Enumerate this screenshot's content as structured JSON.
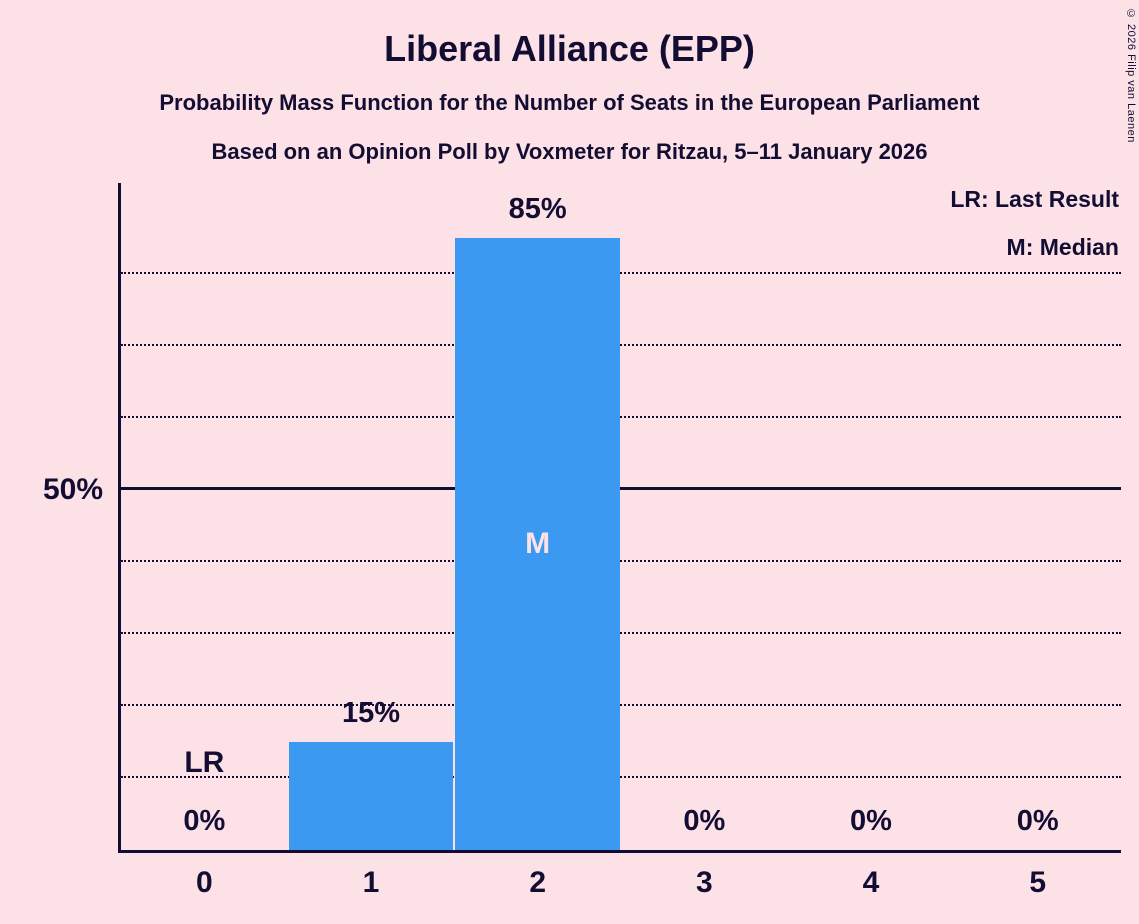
{
  "title": "Liberal Alliance (EPP)",
  "subtitle1": "Probability Mass Function for the Number of Seats in the European Parliament",
  "subtitle2": "Based on an Opinion Poll by Voxmeter for Ritzau, 5–11 January 2026",
  "copyright": "© 2026 Filip van Laenen",
  "legend": {
    "lr": "LR: Last Result",
    "m": "M: Median"
  },
  "y_axis_label": "50%",
  "annotations": {
    "lr_label": "LR",
    "median_label": "M"
  },
  "colors": {
    "background": "#FCE2E7",
    "bar": "#3B99F2",
    "text": "#140D33",
    "median_text": "#FCE2E7"
  },
  "chart_data": {
    "type": "bar",
    "categories": [
      "0",
      "1",
      "2",
      "3",
      "4",
      "5"
    ],
    "values": [
      0,
      15,
      85,
      0,
      0,
      0
    ],
    "labels": [
      "0%",
      "15%",
      "85%",
      "0%",
      "0%",
      "0%"
    ],
    "title": "Liberal Alliance (EPP)",
    "xlabel": "",
    "ylabel": "",
    "ylim": [
      0,
      92.6
    ],
    "gridlines_dotted": [
      10,
      20,
      30,
      40,
      60,
      70,
      80
    ],
    "gridline_solid": 50,
    "grid": true,
    "legend_position": "top-right",
    "median_index": 2,
    "last_result_index": 0
  }
}
